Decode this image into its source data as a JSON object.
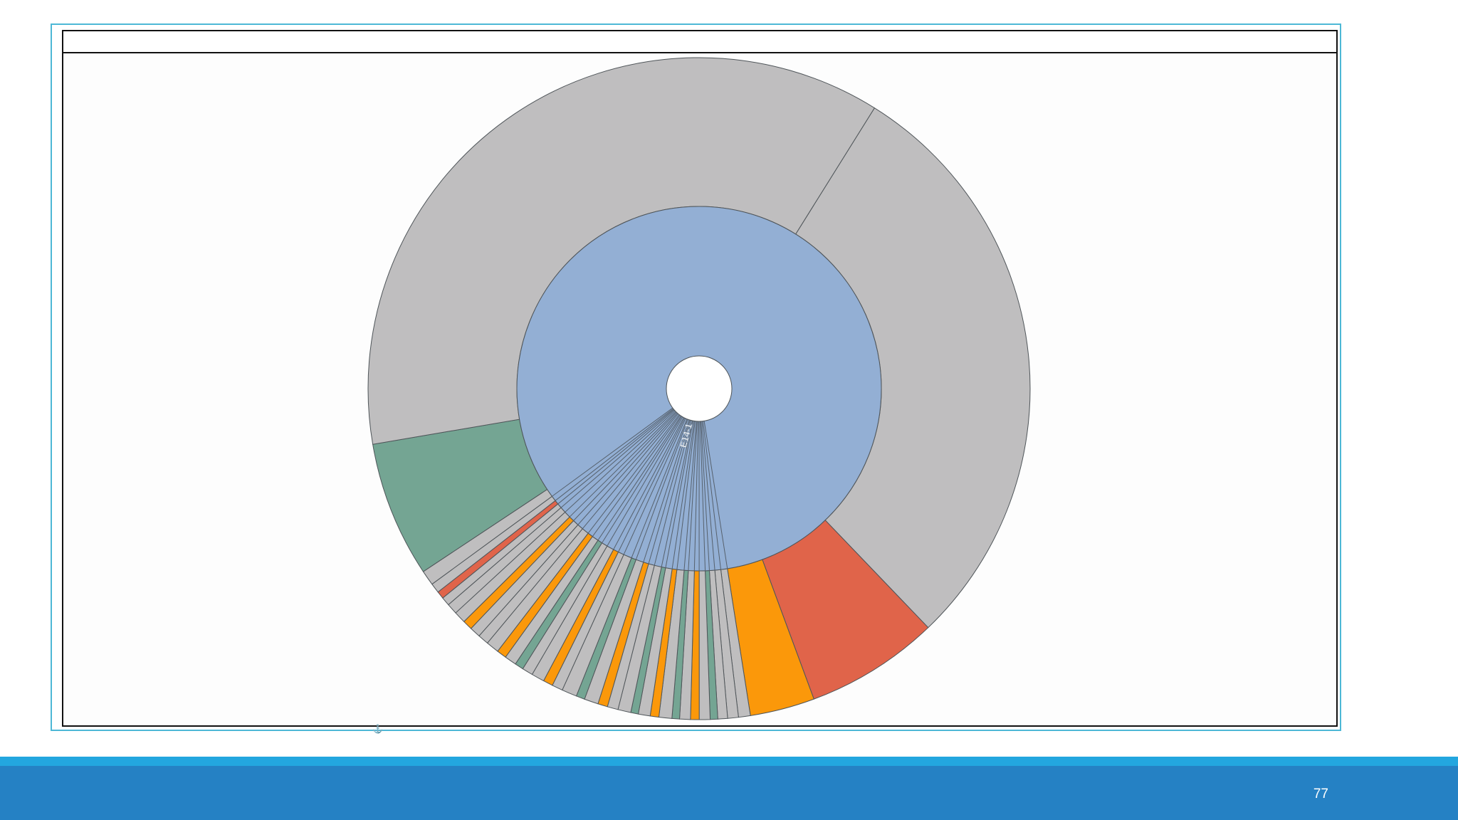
{
  "slide": {
    "number": "77"
  },
  "chart_data": {
    "type": "sunburst",
    "title": "",
    "inner_ring": [
      {
        "label": "E14-1",
        "value": 100,
        "color": "#93afd4"
      }
    ],
    "outer_ring": {
      "colors": {
        "gray": "#bfbebf",
        "teal": "#74a593",
        "orange": "#fb980a",
        "red": "#e0644a"
      },
      "segments": [
        {
          "value": 27.5,
          "color": "gray"
        },
        {
          "value": 6.2,
          "color": "red"
        },
        {
          "value": 3.0,
          "color": "orange"
        },
        {
          "value": 0.55,
          "color": "gray"
        },
        {
          "value": 0.5,
          "color": "gray"
        },
        {
          "value": 0.45,
          "color": "gray"
        },
        {
          "value": 0.35,
          "color": "teal"
        },
        {
          "value": 0.5,
          "color": "gray"
        },
        {
          "value": 0.4,
          "color": "orange"
        },
        {
          "value": 0.5,
          "color": "gray"
        },
        {
          "value": 0.35,
          "color": "teal"
        },
        {
          "value": 0.6,
          "color": "gray"
        },
        {
          "value": 0.4,
          "color": "orange"
        },
        {
          "value": 0.55,
          "color": "gray"
        },
        {
          "value": 0.35,
          "color": "teal"
        },
        {
          "value": 0.6,
          "color": "gray"
        },
        {
          "value": 0.5,
          "color": "gray"
        },
        {
          "value": 0.45,
          "color": "orange"
        },
        {
          "value": 0.65,
          "color": "gray"
        },
        {
          "value": 0.4,
          "color": "teal"
        },
        {
          "value": 0.7,
          "color": "gray"
        },
        {
          "value": 0.5,
          "color": "gray"
        },
        {
          "value": 0.45,
          "color": "orange"
        },
        {
          "value": 0.6,
          "color": "gray"
        },
        {
          "value": 0.5,
          "color": "gray"
        },
        {
          "value": 0.4,
          "color": "teal"
        },
        {
          "value": 0.55,
          "color": "gray"
        },
        {
          "value": 0.45,
          "color": "orange"
        },
        {
          "value": 0.6,
          "color": "gray"
        },
        {
          "value": 0.5,
          "color": "gray"
        },
        {
          "value": 0.5,
          "color": "gray"
        },
        {
          "value": 0.45,
          "color": "orange"
        },
        {
          "value": 0.55,
          "color": "gray"
        },
        {
          "value": 0.5,
          "color": "gray"
        },
        {
          "value": 0.4,
          "color": "gray"
        },
        {
          "value": 0.35,
          "color": "red"
        },
        {
          "value": 0.45,
          "color": "gray"
        },
        {
          "value": 0.7,
          "color": "gray"
        },
        {
          "value": 6.3,
          "color": "teal"
        },
        {
          "value": 34.75,
          "color": "gray"
        }
      ]
    }
  }
}
